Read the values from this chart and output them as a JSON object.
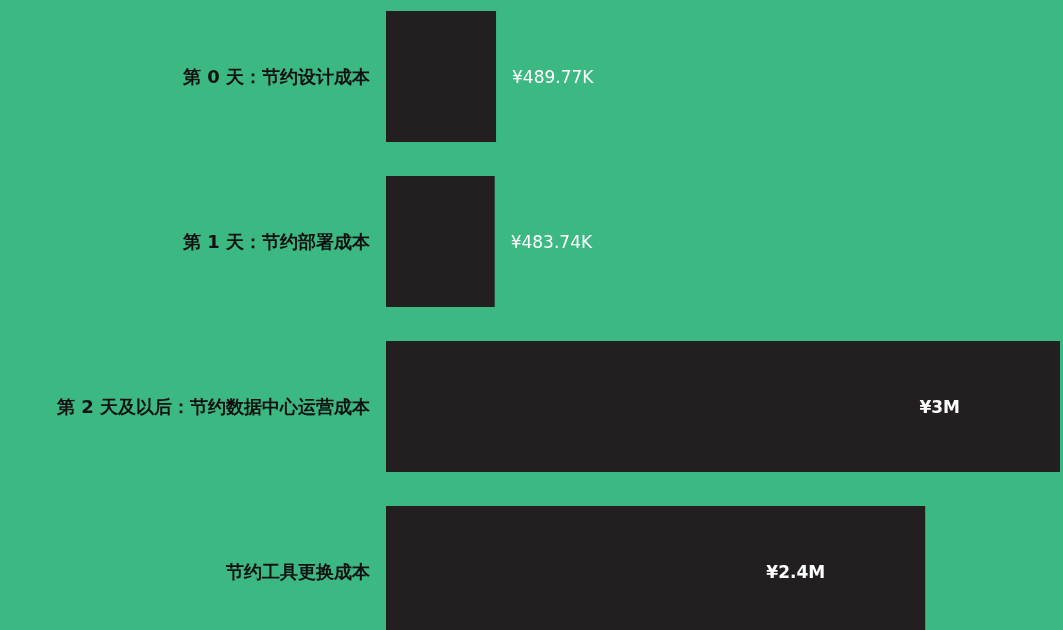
{
  "chart_data": {
    "type": "bar",
    "orientation": "horizontal",
    "categories": [
      "第 0 天：节约设计成本",
      "第 1 天：节约部署成本",
      "第 2 天及以后：节约数据中心运营成本",
      "节约工具更换成本"
    ],
    "values": [
      489770,
      483740,
      3000000,
      2400000
    ],
    "value_labels": [
      "¥489.77K",
      "¥483.74K",
      "¥3M",
      "¥2.4M"
    ],
    "color": "#231f20"
  }
}
